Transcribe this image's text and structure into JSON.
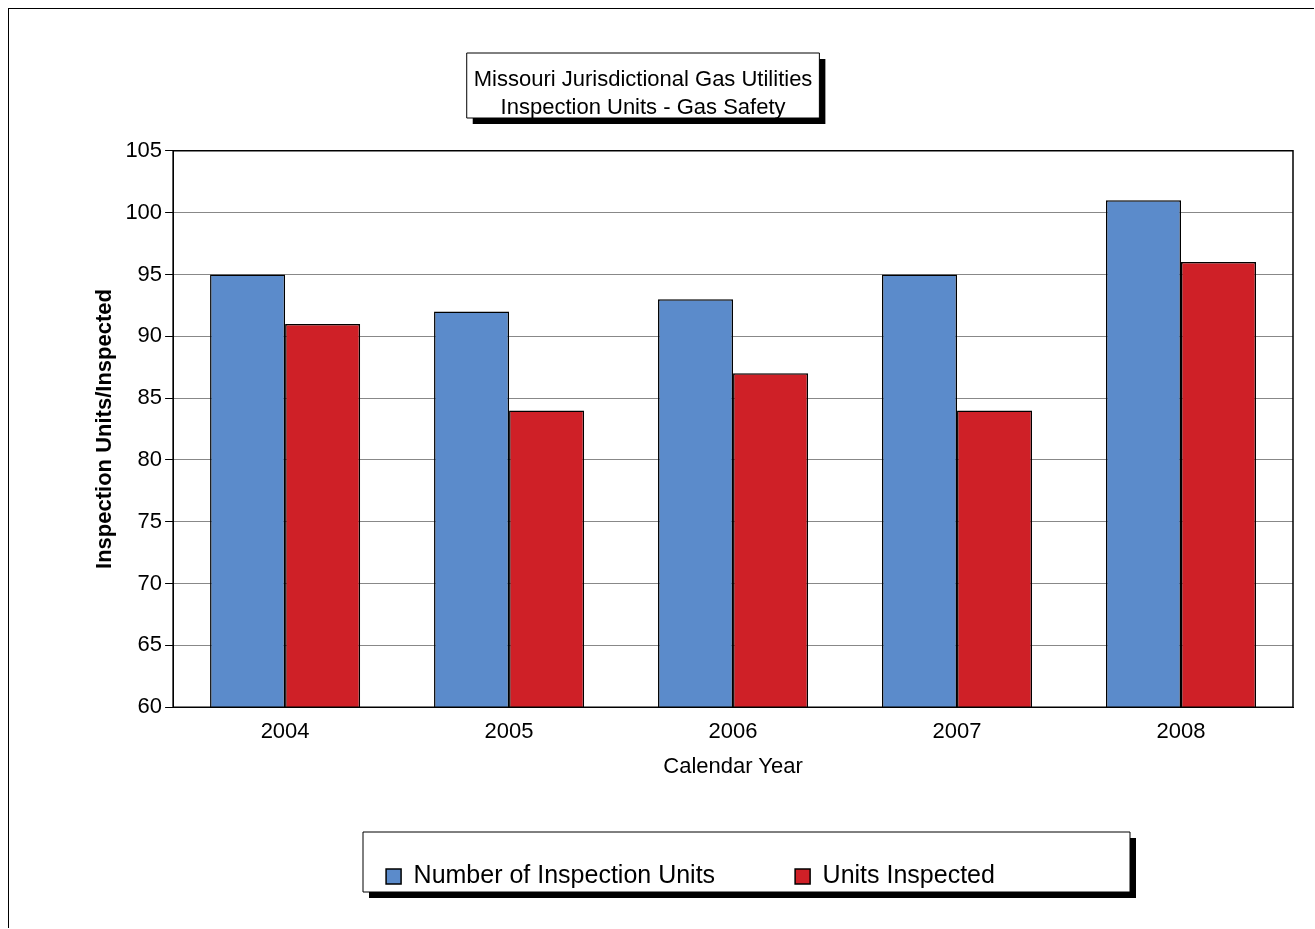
{
  "chart_data": {
    "type": "bar",
    "title": "Missouri Jurisdictional Gas Utilities\nInspection Units - Gas Safety",
    "xlabel": "Calendar Year",
    "ylabel": "Inspection Units/Inspected",
    "categories": [
      "2004",
      "2005",
      "2006",
      "2007",
      "2008"
    ],
    "series": [
      {
        "name": "Number of Inspection Units",
        "color": "#5b8bcb",
        "values": [
          95,
          92,
          93,
          95,
          101
        ]
      },
      {
        "name": "Units Inspected",
        "color": "#cf2027",
        "values": [
          91,
          84,
          87,
          84,
          96
        ]
      }
    ],
    "ylim": [
      60,
      105
    ],
    "yticks": [
      60,
      65,
      70,
      75,
      80,
      85,
      90,
      95,
      100,
      105
    ],
    "grid": "y",
    "legend": "bottom"
  }
}
